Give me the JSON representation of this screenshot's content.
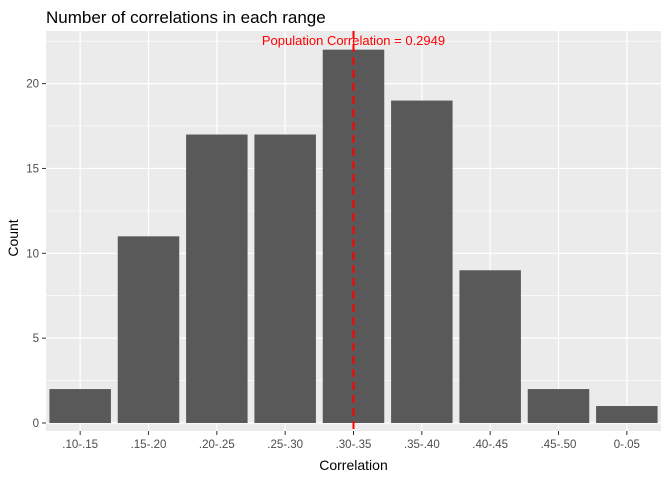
{
  "chart_data": {
    "type": "bar",
    "title": "Number of correlations in each range",
    "xlabel": "Correlation",
    "ylabel": "Count",
    "categories": [
      ".10-.15",
      ".15-.20",
      ".20-.25",
      ".25-.30",
      ".30-.35",
      ".35-.40",
      ".40-.45",
      ".45-.50",
      "0-.05"
    ],
    "values": [
      2,
      11,
      17,
      17,
      22,
      19,
      9,
      2,
      1
    ],
    "ylim": [
      0,
      23.1
    ],
    "yticks": [
      0,
      5,
      10,
      15,
      20
    ],
    "grid": true,
    "bar_color": "#595959",
    "panel_background": "#ebebeb",
    "reference_line": {
      "position_category_index": 4.5,
      "style": "dashed",
      "color": "#ff0000",
      "label": "Population Correlation = 0.2949"
    }
  }
}
